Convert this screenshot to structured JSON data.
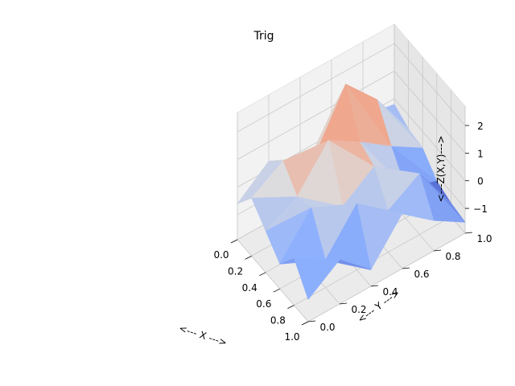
{
  "chart_data": {
    "type": "surface3d",
    "title": "Trig",
    "xlabel": "<--- X --->",
    "ylabel": "<--- Y --->",
    "zlabel": "<---Z(X,Y)--->",
    "x_ticks": [
      "0.0",
      "0.2",
      "0.4",
      "0.6",
      "0.8",
      "1.0"
    ],
    "y_ticks": [
      "0.0",
      "0.2",
      "0.4",
      "0.6",
      "0.8",
      "1.0"
    ],
    "z_ticks": [
      "−1",
      "0",
      "1",
      "2"
    ],
    "xlim": [
      0,
      1
    ],
    "ylim": [
      0,
      1
    ],
    "zlim": [
      -1.9,
      2.7
    ],
    "colormap": "coolwarm",
    "grid": true,
    "x": [
      0.0,
      0.2,
      0.4,
      0.6,
      0.8,
      1.0
    ],
    "y": [
      0.0,
      0.2,
      0.4,
      0.6,
      0.8,
      1.0
    ],
    "z": [
      [
        -0.6,
        0.3,
        -1.0,
        0.8,
        0.0,
        -0.2
      ],
      [
        0.2,
        0.9,
        0.4,
        2.4,
        1.2,
        -0.5
      ],
      [
        -0.4,
        0.2,
        1.6,
        0.9,
        0.1,
        -0.6
      ],
      [
        -1.0,
        0.4,
        -0.2,
        0.6,
        -0.8,
        -1.2
      ],
      [
        -0.2,
        -0.9,
        0.5,
        -0.4,
        0.3,
        -1.4
      ],
      [
        -1.1,
        -0.3,
        -1.3,
        0.1,
        -0.8,
        -1.5
      ]
    ]
  }
}
